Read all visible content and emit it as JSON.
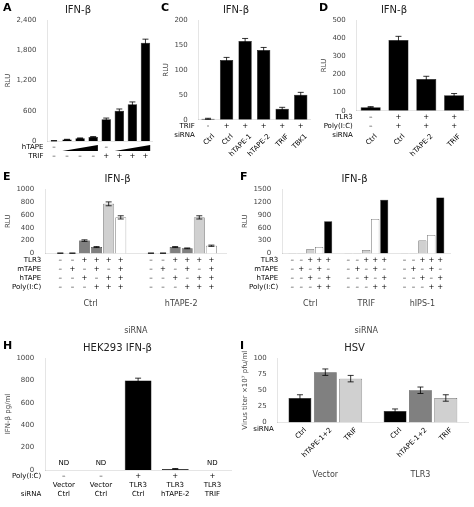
{
  "chart_data": [
    {
      "type": "bar",
      "title": "IFN-β",
      "ylabel": "RLU",
      "categories": [
        null,
        null,
        null,
        null,
        null,
        null,
        null,
        null
      ],
      "values": [
        5,
        30,
        55,
        80,
        430,
        600,
        730,
        1950
      ],
      "errors": [
        2,
        4,
        6,
        8,
        25,
        35,
        45,
        70
      ],
      "color": "black",
      "ylim": [
        0,
        2400
      ],
      "yticks": [
        0,
        600,
        {
          "value": 1200,
          "label": "1,200"
        },
        {
          "value": 1800,
          "label": "1,800"
        },
        {
          "value": 2400,
          "label": "2,400"
        }
      ],
      "grid": false,
      "tick_labels": "y",
      "annotations": [
        {
          "text": "A"
        },
        {
          "row": "hTAPE",
          "labels": [
            "–",
            null,
            null,
            null,
            "–",
            null,
            null,
            null
          ],
          "marker": "wedge"
        },
        {
          "row": "TRIF",
          "labels": [
            "–",
            "–",
            "–",
            "–",
            "+",
            "+",
            "+",
            "+"
          ]
        }
      ]
    },
    {
      "type": "bar",
      "title": "IFN-β",
      "ylabel": "RLU",
      "categories": [
        null,
        null,
        null,
        null,
        null,
        null
      ],
      "values": [
        2,
        120,
        158,
        140,
        22,
        50
      ],
      "errors": [
        1,
        5,
        5,
        5,
        3,
        5
      ],
      "color": "black",
      "ylim": [
        0,
        200
      ],
      "yticks": [
        0,
        50,
        100,
        150,
        200
      ],
      "grid": false,
      "tick_labels": "y",
      "annotations": [
        {
          "text": "C"
        },
        {
          "row": "TRIF",
          "labels": [
            "-",
            "+",
            "+",
            "+",
            "+",
            "+"
          ]
        },
        {
          "row": "siRNA",
          "labels": [
            "Ctrl",
            "Ctrl",
            "hTAPE-1",
            "hTAPE-2",
            "TRIF",
            "TBK1"
          ]
        }
      ]
    },
    {
      "type": "bar",
      "title": "IFN-β",
      "ylabel": "RLU",
      "categories": [
        null,
        null,
        null,
        null
      ],
      "values": [
        20,
        390,
        175,
        85
      ],
      "errors": [
        3,
        20,
        15,
        10
      ],
      "color": "black",
      "ylim": [
        0,
        500
      ],
      "yticks": [
        0,
        100,
        200,
        300,
        400,
        500
      ],
      "grid": false,
      "tick_labels": "y",
      "annotations": [
        {
          "text": "D"
        },
        {
          "row": "TLR3",
          "labels": [
            "–",
            "+",
            "+",
            "+"
          ]
        },
        {
          "row": "Poly(I:C)",
          "labels": [
            "–",
            "+",
            "+",
            "+"
          ]
        },
        {
          "row": "siRNA",
          "labels": [
            "Ctrl",
            "Ctrl",
            "hTAPE-2",
            "TRIF"
          ]
        }
      ]
    },
    {
      "type": "bar",
      "title": "IFN-β",
      "ylabel": "RLU",
      "xlabel": "siRNA",
      "categories": [
        "Ctrl",
        "hTAPE-2"
      ],
      "series": [
        {
          "color": "black",
          "values": [
            5,
            5
          ],
          "errors": [
            1,
            1
          ]
        },
        {
          "color": "black",
          "values": [
            5,
            5
          ],
          "errors": [
            1,
            1
          ]
        },
        {
          "color": "#808080",
          "values": [
            200,
            100
          ],
          "errors": [
            12,
            8
          ]
        },
        {
          "color": "#808080",
          "values": [
            100,
            80
          ],
          "errors": [
            8,
            6
          ]
        },
        {
          "color": "#d0d0d0",
          "values": [
            770,
            560
          ],
          "errors": [
            30,
            25
          ]
        },
        {
          "color": "white",
          "values": [
            560,
            120
          ],
          "errors": [
            25,
            10
          ]
        }
      ],
      "ylim": [
        0,
        1000
      ],
      "yticks": [
        0,
        200,
        400,
        600,
        800,
        1000
      ],
      "grid": false,
      "annotations": [
        {
          "text": "E"
        },
        {
          "row": "TLR3",
          "labels": [
            "–",
            "–",
            "+",
            "+",
            "+",
            "+",
            "–",
            "–",
            "+",
            "+",
            "+",
            "+"
          ]
        },
        {
          "row": "mTAPE",
          "labels": [
            "–",
            "+",
            "–",
            "+",
            "–",
            "+",
            "–",
            "+",
            "–",
            "+",
            "–",
            "+"
          ]
        },
        {
          "row": "hTAPE",
          "labels": [
            "–",
            "–",
            "+",
            "–",
            "+",
            "+",
            "–",
            "–",
            "+",
            "–",
            "+",
            "+"
          ]
        },
        {
          "row": "Poly(I:C)",
          "labels": [
            "–",
            "–",
            "–",
            "+",
            "+",
            "+",
            "–",
            "–",
            "–",
            "+",
            "+",
            "+"
          ]
        }
      ]
    },
    {
      "type": "bar",
      "title": "IFN-β",
      "ylabel": "RLU",
      "xlabel": "siRNA",
      "categories": [
        "Ctrl",
        "TRIF",
        "hIPS-1"
      ],
      "series": [
        {
          "color": "black",
          "values": [
            5,
            5,
            5
          ]
        },
        {
          "color": "#808080",
          "values": [
            5,
            5,
            5
          ]
        },
        {
          "color": "#d0d0d0",
          "values": [
            100,
            80,
            300
          ]
        },
        {
          "color": "white",
          "values": [
            150,
            800,
            430
          ]
        },
        {
          "color": "black",
          "values": [
            750,
            1250,
            1300
          ]
        }
      ],
      "ylim": [
        0,
        1500
      ],
      "yticks": [
        0,
        300,
        600,
        900,
        1200,
        1500
      ],
      "grid": false,
      "annotations": [
        {
          "text": "F"
        },
        {
          "row": "TLR3",
          "labels": [
            "–",
            "–",
            "+",
            "+",
            "+",
            "–",
            "–",
            "+",
            "+",
            "+",
            "–",
            "–",
            "+",
            "+",
            "+"
          ]
        },
        {
          "row": "mTAPE",
          "labels": [
            "–",
            "+",
            "–",
            "+",
            "–",
            "–",
            "+",
            "–",
            "+",
            "–",
            "–",
            "+",
            "–",
            "+",
            "–"
          ]
        },
        {
          "row": "hTAPE",
          "labels": [
            "–",
            "–",
            "+",
            "–",
            "+",
            "–",
            "–",
            "+",
            "–",
            "+",
            "–",
            "–",
            "+",
            "–",
            "+"
          ]
        },
        {
          "row": "Poly(I:C)",
          "labels": [
            "–",
            "–",
            "–",
            "+",
            "+",
            "–",
            "–",
            "–",
            "+",
            "+",
            "–",
            "–",
            "–",
            "+",
            "+"
          ]
        }
      ]
    },
    {
      "type": "bar",
      "title": "HEK293 IFN-β",
      "ylabel": "IFN-β pg/ml",
      "categories": [
        null,
        null,
        null,
        null,
        null
      ],
      "values": [
        0,
        0,
        800,
        10,
        0
      ],
      "errors": [
        0,
        0,
        20,
        3,
        0
      ],
      "color": "black",
      "ylim": [
        0,
        1000
      ],
      "yticks": [
        0,
        200,
        400,
        600,
        800,
        1000
      ],
      "grid": false,
      "tick_labels": "y",
      "annotations": [
        {
          "text": "H"
        },
        {
          "text": "ND",
          "x": 0,
          "y": 30
        },
        {
          "text": "ND",
          "x": 1,
          "y": 30
        },
        {
          "text": "ND",
          "x": 4,
          "y": 30
        },
        {
          "row": "Poly(I:C)",
          "labels": [
            "–",
            "–",
            "+",
            "+",
            "+"
          ]
        },
        {
          "row": null,
          "labels": [
            "Vector",
            "Vector",
            "TLR3",
            "TLR3",
            "TLR3"
          ]
        },
        {
          "row": "siRNA",
          "labels": [
            "Ctrl",
            "Ctrl",
            "Ctrl",
            "hTAPE-2",
            "TRIF"
          ]
        }
      ]
    },
    {
      "type": "bar",
      "title": "HSV",
      "ylabel": "Virus titer ×10⁷ pfu/ml",
      "categories": [
        "Vector",
        "TLR3"
      ],
      "series": [
        {
          "color": "black",
          "values": [
            38,
            18
          ],
          "errors": [
            5,
            3
          ]
        },
        {
          "color": "#808080",
          "values": [
            78,
            50
          ],
          "errors": [
            5,
            5
          ]
        },
        {
          "color": "#d0d0d0",
          "values": [
            68,
            38
          ],
          "errors": [
            5,
            5
          ]
        }
      ],
      "ylim": [
        0,
        100
      ],
      "yticks": [
        0,
        25,
        50,
        75,
        100
      ],
      "grid": false,
      "annotations": [
        {
          "text": "I"
        },
        {
          "row": "siRNA",
          "labels": [
            "Ctrl",
            "hTAPE-1+2",
            "TRIF",
            "Ctrl",
            "hTAPE-1+2",
            "TRIF"
          ]
        }
      ]
    }
  ]
}
